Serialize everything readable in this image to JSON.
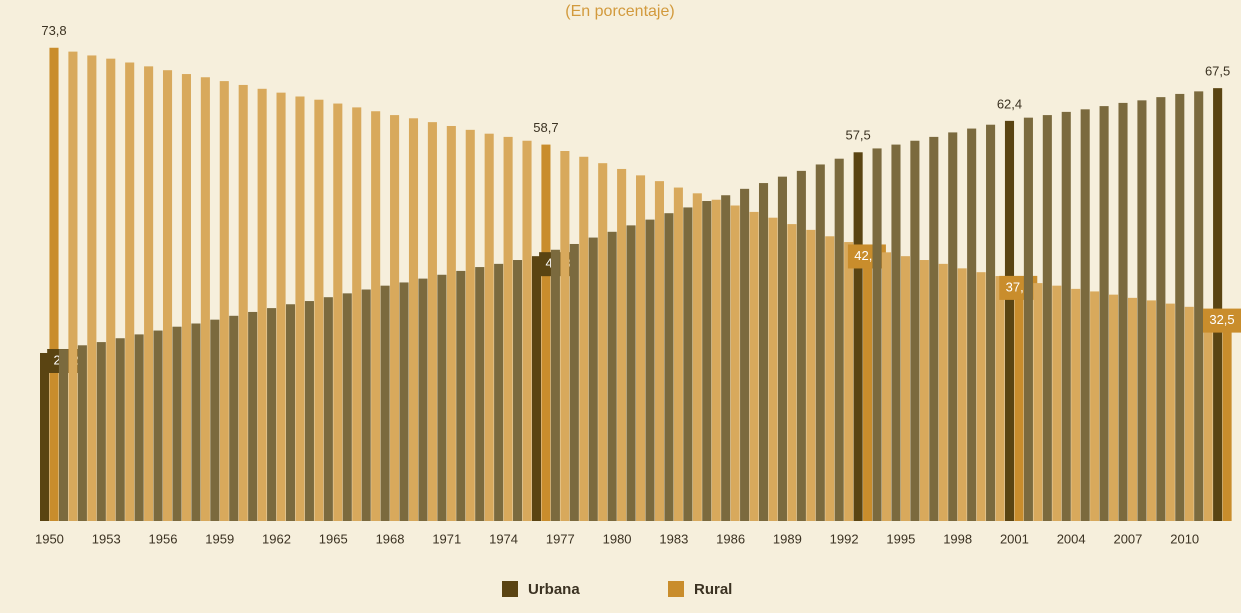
{
  "chart_data": {
    "type": "bar",
    "subtitle": "(En porcentaje)",
    "categories": [
      "1950",
      null,
      null,
      "1953",
      null,
      null,
      "1956",
      null,
      null,
      "1959",
      null,
      null,
      "1962",
      null,
      null,
      "1965",
      null,
      null,
      "1968",
      null,
      null,
      "1971",
      null,
      null,
      "1974",
      null,
      null,
      "1977",
      null,
      null,
      "1980",
      null,
      null,
      "1983",
      null,
      null,
      "1986",
      null,
      null,
      "1989",
      null,
      null,
      "1992",
      null,
      null,
      "1995",
      null,
      null,
      "1998",
      null,
      null,
      "2001",
      null,
      null,
      "2004",
      null,
      null,
      "2007",
      null,
      null,
      "2010",
      null,
      null
    ],
    "ylim": [
      0,
      80
    ],
    "series": [
      {
        "name": "Urbana",
        "color": "#7b6a3e",
        "highlight_color": "#5a4412",
        "values": [
          26.2,
          26.8,
          27.4,
          27.9,
          28.5,
          29.1,
          29.7,
          30.3,
          30.8,
          31.4,
          32.0,
          32.6,
          33.2,
          33.8,
          34.3,
          34.9,
          35.5,
          36.1,
          36.7,
          37.2,
          37.8,
          38.4,
          39.0,
          39.6,
          40.1,
          40.7,
          41.3,
          42.3,
          43.2,
          44.2,
          45.1,
          46.1,
          47.0,
          48.0,
          48.9,
          49.9,
          50.8,
          51.8,
          52.7,
          53.7,
          54.6,
          55.6,
          56.5,
          57.5,
          58.1,
          58.7,
          59.3,
          59.9,
          60.6,
          61.2,
          61.8,
          62.4,
          62.9,
          63.3,
          63.8,
          64.2,
          64.7,
          65.2,
          65.6,
          66.1,
          66.6,
          67.0,
          67.5
        ],
        "value_labels": [
          "26,2",
          null,
          null,
          null,
          null,
          null,
          null,
          null,
          null,
          null,
          null,
          null,
          null,
          null,
          null,
          null,
          null,
          null,
          null,
          null,
          null,
          null,
          null,
          null,
          null,
          null,
          "41,3",
          null,
          null,
          null,
          null,
          null,
          null,
          null,
          null,
          null,
          null,
          null,
          null,
          null,
          null,
          null,
          null,
          "57,5",
          null,
          null,
          null,
          null,
          null,
          null,
          null,
          "62,4",
          null,
          null,
          null,
          null,
          null,
          null,
          null,
          null,
          null,
          null,
          "67,5"
        ]
      },
      {
        "name": "Rural",
        "color": "#d8a95c",
        "highlight_color": "#c98d2c",
        "values": [
          73.8,
          73.2,
          72.6,
          72.1,
          71.5,
          70.9,
          70.3,
          69.7,
          69.2,
          68.6,
          68.0,
          67.4,
          66.8,
          66.2,
          65.7,
          65.1,
          64.5,
          63.9,
          63.3,
          62.8,
          62.2,
          61.6,
          61.0,
          60.4,
          59.9,
          59.3,
          58.7,
          57.7,
          56.8,
          55.8,
          54.9,
          53.9,
          53.0,
          52.0,
          51.1,
          50.1,
          49.2,
          48.2,
          47.3,
          46.3,
          45.4,
          44.4,
          43.5,
          42.5,
          41.9,
          41.3,
          40.7,
          40.1,
          39.4,
          38.8,
          38.2,
          37.6,
          37.1,
          36.7,
          36.2,
          35.8,
          35.3,
          34.8,
          34.4,
          33.9,
          33.4,
          33.0,
          32.5
        ],
        "value_labels": [
          "73,8",
          null,
          null,
          null,
          null,
          null,
          null,
          null,
          null,
          null,
          null,
          null,
          null,
          null,
          null,
          null,
          null,
          null,
          null,
          null,
          null,
          null,
          null,
          null,
          null,
          null,
          "58,7",
          null,
          null,
          null,
          null,
          null,
          null,
          null,
          null,
          null,
          null,
          null,
          null,
          null,
          null,
          null,
          null,
          "42,5",
          null,
          null,
          null,
          null,
          null,
          null,
          null,
          "37,6",
          null,
          null,
          null,
          null,
          null,
          null,
          null,
          null,
          null,
          null,
          "32,5"
        ]
      }
    ]
  }
}
